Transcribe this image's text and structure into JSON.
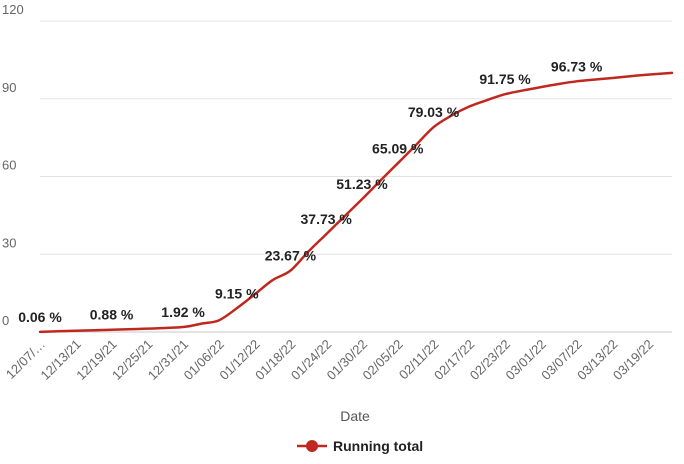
{
  "chart_data": {
    "type": "line",
    "xlabel": "Date",
    "ylabel": "",
    "ylim": [
      0,
      120
    ],
    "yticks": [
      "0",
      "30",
      "60",
      "90",
      "120"
    ],
    "grid": "horizontal",
    "legend_position": "bottom",
    "x_tick_labels": [
      "12/07/…",
      "12/13/21",
      "12/19/21",
      "12/25/21",
      "12/31/21",
      "01/06/22",
      "01/12/22",
      "01/18/22",
      "01/24/22",
      "01/30/22",
      "02/05/22",
      "02/11/22",
      "02/17/22",
      "02/23/22",
      "03/01/22",
      "03/07/22",
      "03/13/22",
      "03/19/22"
    ],
    "series": [
      {
        "name": "Running total",
        "color": "#c0281f",
        "x": [
          "2021-12-07",
          "2021-12-13",
          "2021-12-19",
          "2021-12-25",
          "2021-12-31",
          "2022-01-03",
          "2022-01-06",
          "2022-01-09",
          "2022-01-12",
          "2022-01-15",
          "2022-01-18",
          "2022-01-21",
          "2022-01-24",
          "2022-01-27",
          "2022-01-30",
          "2022-02-02",
          "2022-02-05",
          "2022-02-08",
          "2022-02-11",
          "2022-02-14",
          "2022-02-17",
          "2022-02-20",
          "2022-02-23",
          "2022-02-26",
          "2022-03-01",
          "2022-03-04",
          "2022-03-07",
          "2022-03-10",
          "2022-03-13",
          "2022-03-16",
          "2022-03-19",
          "2022-03-23"
        ],
        "values": [
          0.06,
          0.5,
          0.88,
          1.3,
          1.92,
          3.2,
          4.5,
          9.15,
          14.5,
          20.0,
          23.67,
          31.0,
          37.73,
          44.5,
          51.23,
          58.2,
          65.09,
          72.0,
          79.03,
          83.5,
          87.0,
          89.5,
          91.75,
          93.2,
          94.5,
          95.7,
          96.73,
          97.4,
          98.0,
          98.7,
          99.3,
          100.0
        ]
      }
    ],
    "data_labels": [
      {
        "x": "2021-12-07",
        "value": 0.06,
        "text": "0.06 %"
      },
      {
        "x": "2021-12-19",
        "value": 0.88,
        "text": "0.88 %"
      },
      {
        "x": "2021-12-31",
        "value": 1.92,
        "text": "1.92 %"
      },
      {
        "x": "2022-01-09",
        "value": 9.15,
        "text": "9.15 %"
      },
      {
        "x": "2022-01-18",
        "value": 23.67,
        "text": "23.67 %"
      },
      {
        "x": "2022-01-24",
        "value": 37.73,
        "text": "37.73 %"
      },
      {
        "x": "2022-01-30",
        "value": 51.23,
        "text": "51.23 %"
      },
      {
        "x": "2022-02-05",
        "value": 65.09,
        "text": "65.09 %"
      },
      {
        "x": "2022-02-11",
        "value": 79.03,
        "text": "79.03 %"
      },
      {
        "x": "2022-02-23",
        "value": 91.75,
        "text": "91.75 %"
      },
      {
        "x": "2022-03-07",
        "value": 96.73,
        "text": "96.73 %"
      }
    ]
  }
}
